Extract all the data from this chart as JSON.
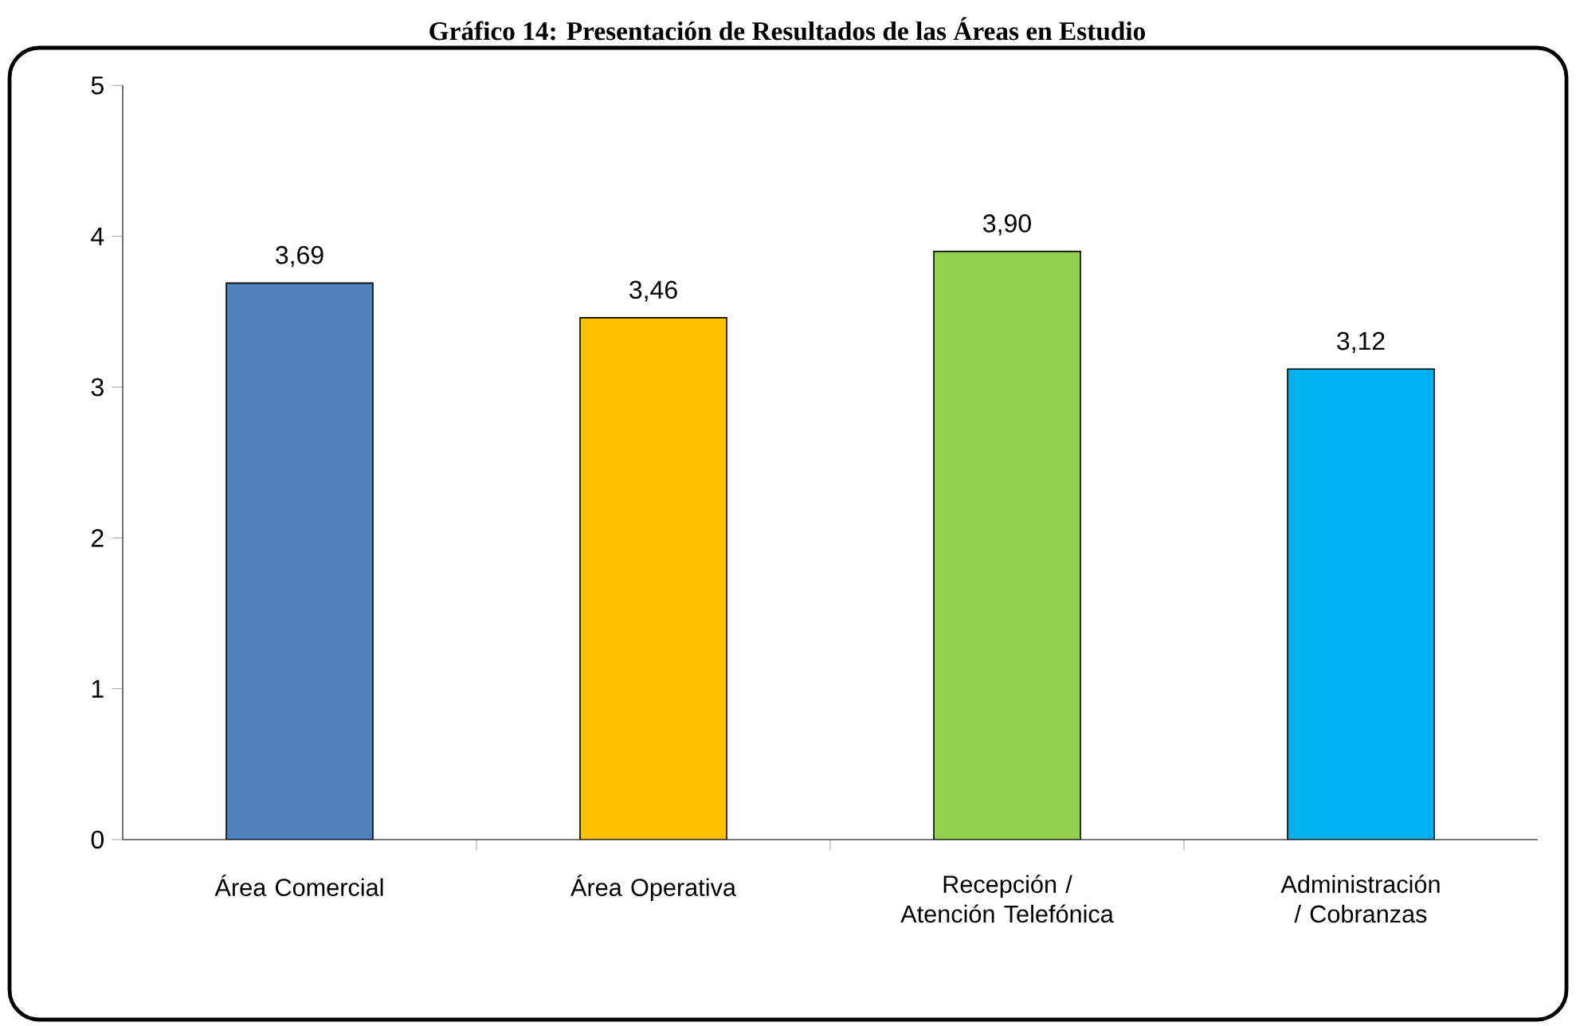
{
  "chart_data": {
    "type": "bar",
    "title": "Gráfico 14: Presentación de Resultados de las Áreas en Estudio",
    "categories": [
      "Área Comercial",
      "Área Operativa",
      "Recepción / Atención Telefónica",
      "Administración / Cobranzas"
    ],
    "values": [
      3.69,
      3.46,
      3.9,
      3.12
    ],
    "colors": [
      "#4f81bd",
      "#ffc000",
      "#92d050",
      "#00b0f0"
    ],
    "value_labels": [
      "3,69",
      "3,46",
      "3,90",
      "3,12"
    ],
    "ylim": [
      0,
      5
    ],
    "yticks": [
      0,
      1,
      2,
      3,
      4,
      5
    ]
  }
}
